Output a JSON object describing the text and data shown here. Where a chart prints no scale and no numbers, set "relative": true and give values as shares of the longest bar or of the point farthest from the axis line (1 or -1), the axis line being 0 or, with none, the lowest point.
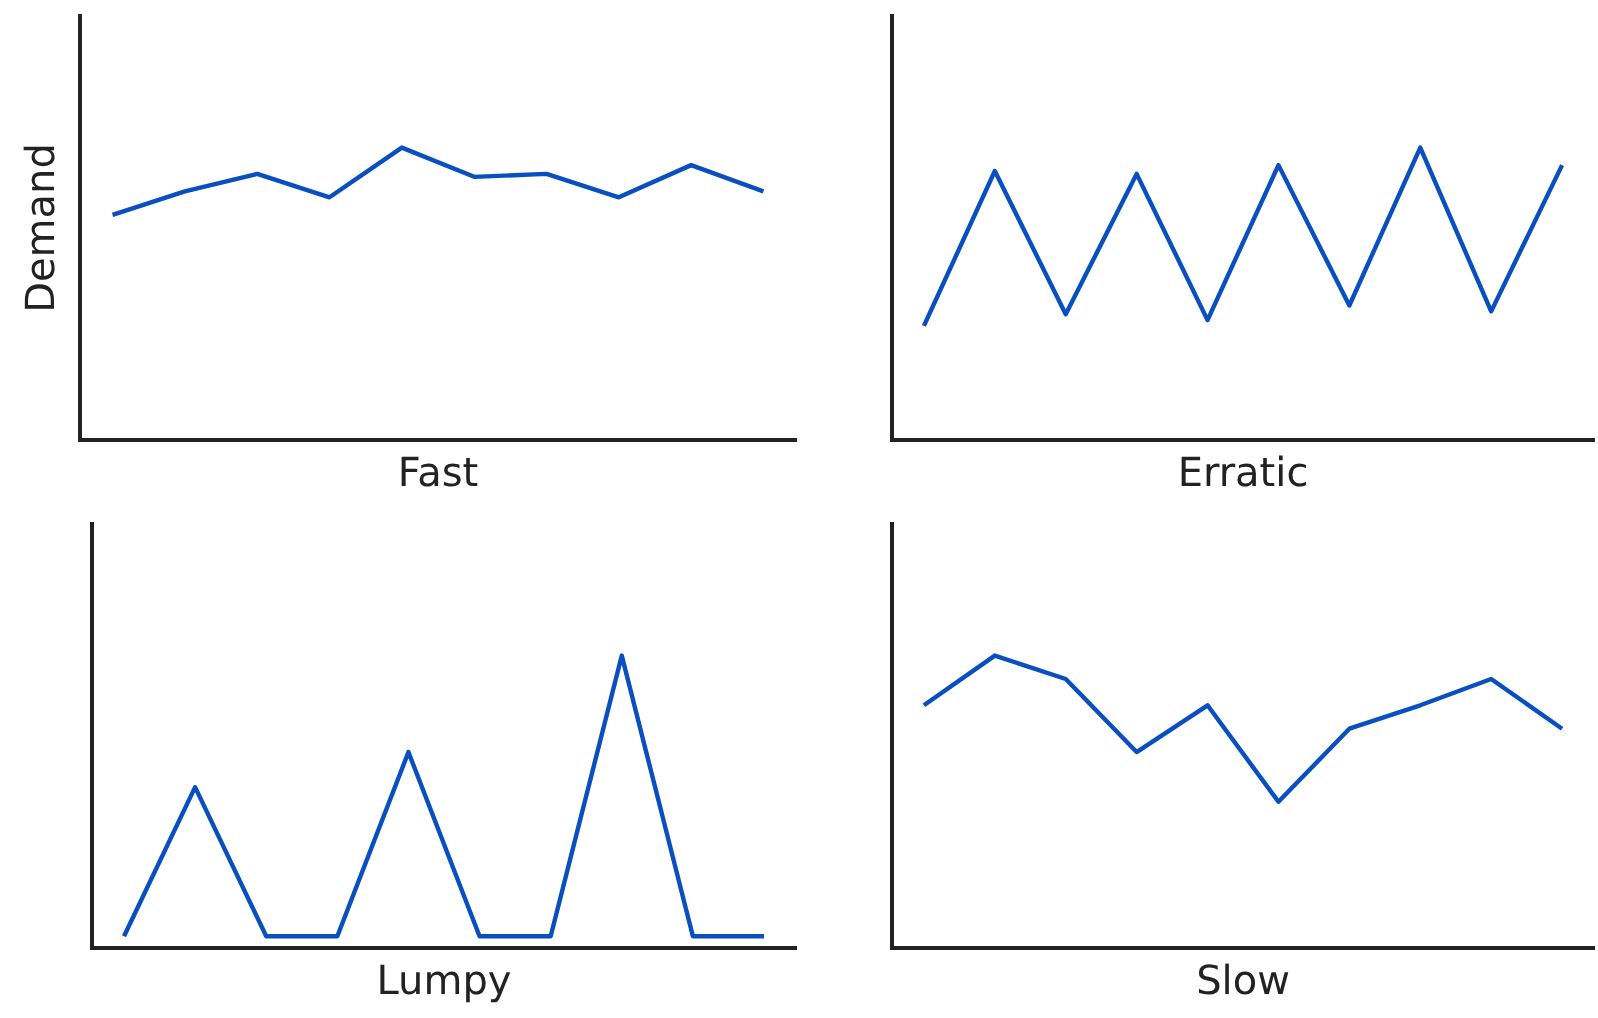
{
  "chart_data": [
    {
      "type": "line",
      "ylabel": "Demand",
      "xlabel": "Fast",
      "relative": true,
      "categories": [
        null,
        null,
        null,
        null,
        null,
        null,
        null,
        null,
        null,
        null
      ],
      "series": [
        {
          "color": "#0a4fc0",
          "values": [
            0.77,
            0.85,
            0.91,
            0.83,
            1,
            0.9,
            0.91,
            0.83,
            0.94,
            0.85
          ]
        }
      ]
    },
    {
      "type": "line",
      "xlabel": "Erratic",
      "relative": true,
      "categories": [
        null,
        null,
        null,
        null,
        null,
        null,
        null,
        null,
        null,
        null
      ],
      "series": [
        {
          "color": "#0a4fc0",
          "values": [
            0.39,
            0.92,
            0.43,
            0.91,
            0.41,
            0.94,
            0.46,
            1,
            0.44,
            0.94
          ]
        }
      ]
    },
    {
      "type": "line",
      "xlabel": "Lumpy",
      "relative": true,
      "categories": [
        null,
        null,
        null,
        null,
        null,
        null,
        null,
        null,
        null,
        null
      ],
      "series": [
        {
          "color": "#0a4fc0",
          "values": [
            0.04,
            0.55,
            0.04,
            0.04,
            0.67,
            0.04,
            0.04,
            1,
            0.04,
            0.04
          ]
        }
      ]
    },
    {
      "type": "line",
      "xlabel": "Slow",
      "relative": true,
      "categories": [
        null,
        null,
        null,
        null,
        null,
        null,
        null,
        null,
        null,
        null
      ],
      "series": [
        {
          "color": "#0a4fc0",
          "values": [
            0.83,
            1,
            0.92,
            0.67,
            0.83,
            0.5,
            0.75,
            0.83,
            0.92,
            0.75
          ]
        }
      ]
    }
  ]
}
